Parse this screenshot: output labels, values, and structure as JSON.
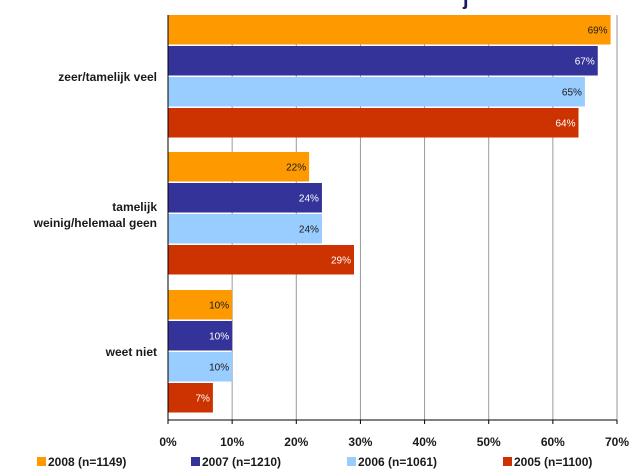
{
  "title_fragment": "j",
  "colors": {
    "grid": "#9a9a9a",
    "axis": "#000000"
  },
  "chart_data": {
    "type": "bar",
    "orientation": "horizontal",
    "categories": [
      "zeer/tamelijk veel",
      "tamelijk weinig/helemaal geen",
      "weet niet"
    ],
    "category_lines": [
      [
        "zeer/tamelijk veel"
      ],
      [
        "tamelijk",
        "weinig/helemaal geen"
      ],
      [
        "weet niet"
      ]
    ],
    "series": [
      {
        "name": "2008 (n=1149)",
        "color": "#ff9900",
        "label_color": "#1a1a1a",
        "values": [
          69,
          22,
          10
        ]
      },
      {
        "name": "2007 (n=1210)",
        "color": "#333399",
        "label_color": "#ffffff",
        "values": [
          67,
          24,
          10
        ]
      },
      {
        "name": "2006 (n=1061)",
        "color": "#99ccff",
        "label_color": "#1a1a1a",
        "values": [
          65,
          24,
          10
        ]
      },
      {
        "name": "2005 (n=1100)",
        "color": "#cc3300",
        "label_color": "#ffffff",
        "values": [
          64,
          29,
          7
        ]
      }
    ],
    "xlim": [
      0,
      70
    ],
    "ticks": [
      0,
      10,
      20,
      30,
      40,
      50,
      60,
      70
    ],
    "tick_suffix": "%",
    "grid": true,
    "legend_position": "bottom"
  }
}
